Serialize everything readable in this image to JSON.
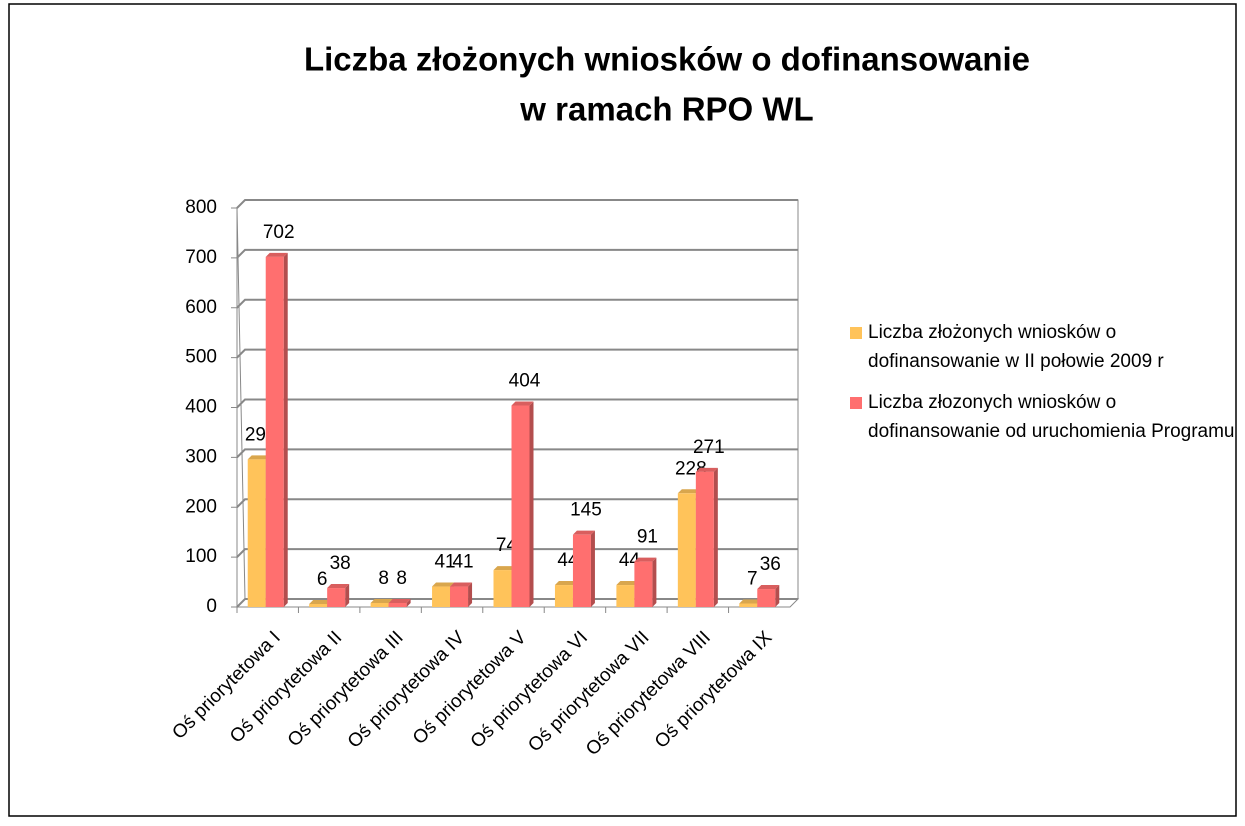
{
  "chart_data": {
    "type": "bar3d",
    "title": [
      "Liczba złożonych wniosków o dofinansowanie",
      "w ramach RPO WL"
    ],
    "categories": [
      "Oś priorytetowa I",
      "Oś priorytetowa II",
      "Oś priorytetowa III",
      "Oś priorytetowa IV",
      "Oś priorytetowa V",
      "Oś priorytetowa VI",
      "Oś priorytetowa VII",
      "Oś priorytetowa VIII",
      "Oś priorytetowa IX"
    ],
    "series": [
      {
        "name": "Liczba złożonych wniosków o dofinansowanie w II połowie 2009 r",
        "color": "#ffc35a",
        "values": [
          296,
          6,
          8,
          41,
          74,
          44,
          44,
          228,
          7
        ]
      },
      {
        "name": "Liczba złozonych wniosków o dofinansowanie od uruchomienia Programu",
        "color": "#ff6f6f",
        "values": [
          702,
          38,
          8,
          41,
          404,
          145,
          91,
          271,
          36
        ]
      }
    ],
    "ylim": [
      0,
      800
    ],
    "yticks": [
      0,
      100,
      200,
      300,
      400,
      500,
      600,
      700,
      800
    ],
    "grid": true,
    "legend": "right"
  }
}
